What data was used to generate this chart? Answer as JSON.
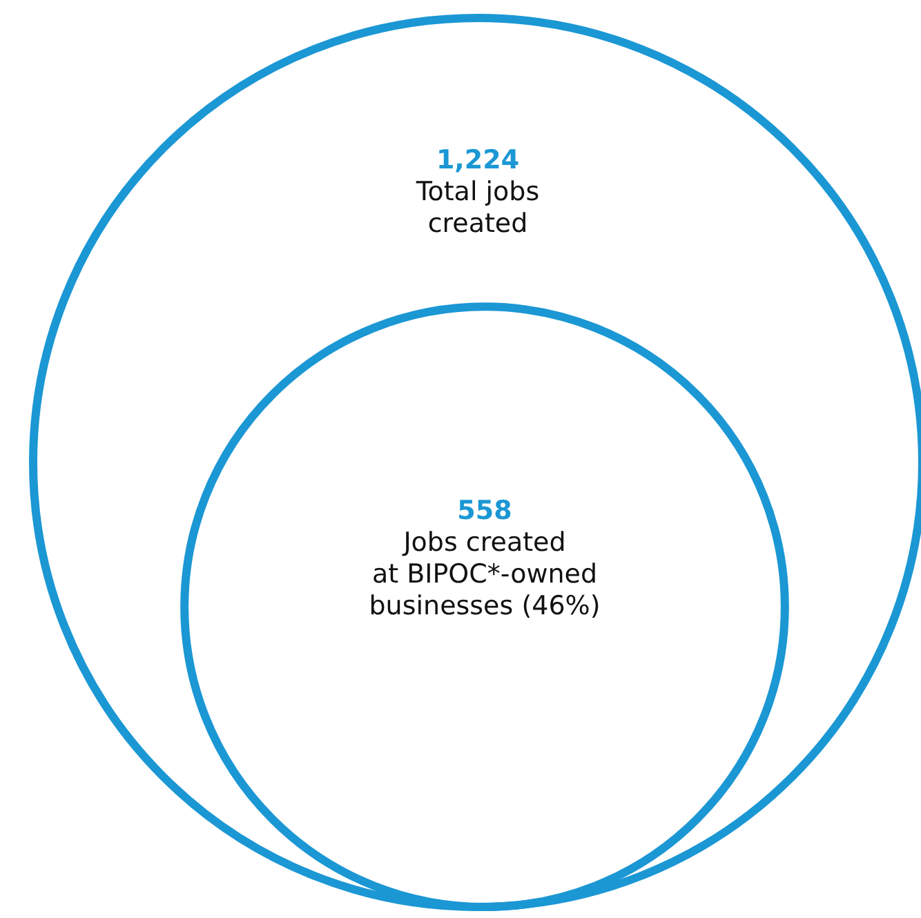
{
  "chart_data": {
    "type": "other",
    "categories": [
      "Total jobs created",
      "Jobs created at BIPOC*-owned businesses (46%)"
    ],
    "values": [
      1224,
      558
    ],
    "value_labels": [
      "1,224",
      "558"
    ],
    "colors": [
      "#1b97d4",
      "#1b97d4"
    ]
  }
}
